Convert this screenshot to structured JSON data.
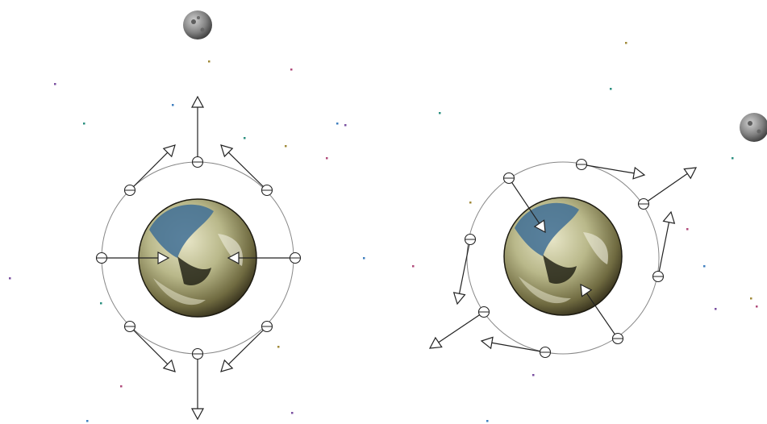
{
  "colors": {
    "background": "#ffffff",
    "orbit": "#888888",
    "vector": "#222222",
    "earth_ocean": "#3f6f95",
    "earth_land": "#d8d6b0",
    "moon": "#777777",
    "stars": [
      "#7a4fa0",
      "#2a8f7f",
      "#a08a3a",
      "#b04a7a",
      "#3f7fbf"
    ]
  },
  "icons": {
    "earth": "earth-icon",
    "moon": "moon-icon",
    "sample_point": "circle-marker",
    "arrowhead": "open-triangle-arrowhead"
  },
  "panels": [
    {
      "name": "uniform-field",
      "sample_points": 8,
      "vector_pattern": "tidal-stretch"
    },
    {
      "name": "rotating-field",
      "sample_points": 8,
      "vector_pattern": "tangential-shear"
    }
  ]
}
